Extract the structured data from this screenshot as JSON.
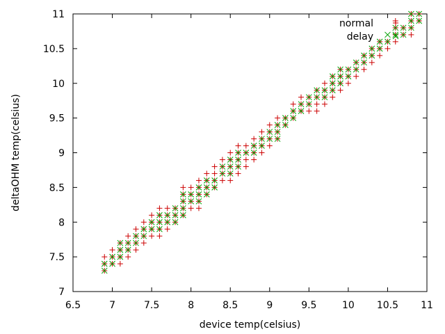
{
  "chart_data": {
    "type": "scatter",
    "title": "",
    "xlabel": "device temp(celsius)",
    "ylabel": "deltaOHM temp(celsius)",
    "xlim": [
      6.5,
      11
    ],
    "ylim": [
      7,
      11
    ],
    "xticks": [
      6.5,
      7,
      7.5,
      8,
      8.5,
      9,
      9.5,
      10,
      10.5,
      11
    ],
    "yticks": [
      7,
      7.5,
      8,
      8.5,
      9,
      9.5,
      10,
      10.5,
      11
    ],
    "xtick_labels": [
      "6.5",
      "7",
      "7.5",
      "8",
      "8.5",
      "9",
      "9.5",
      "10",
      "10.5",
      "11"
    ],
    "ytick_labels": [
      "7",
      "7.5",
      "8",
      "8.5",
      "9",
      "9.5",
      "10",
      "10.5",
      "11"
    ],
    "grid": false,
    "legend_position": "top-right",
    "series": [
      {
        "name": "normal",
        "marker": "plus",
        "color": "#cc0000",
        "points": [
          [
            6.9,
            7.3
          ],
          [
            6.9,
            7.4
          ],
          [
            6.9,
            7.5
          ],
          [
            7.0,
            7.4
          ],
          [
            7.0,
            7.5
          ],
          [
            7.0,
            7.6
          ],
          [
            7.1,
            7.4
          ],
          [
            7.1,
            7.5
          ],
          [
            7.1,
            7.6
          ],
          [
            7.1,
            7.7
          ],
          [
            7.2,
            7.5
          ],
          [
            7.2,
            7.6
          ],
          [
            7.2,
            7.7
          ],
          [
            7.2,
            7.8
          ],
          [
            7.3,
            7.6
          ],
          [
            7.3,
            7.7
          ],
          [
            7.3,
            7.8
          ],
          [
            7.3,
            7.9
          ],
          [
            7.4,
            7.7
          ],
          [
            7.4,
            7.8
          ],
          [
            7.4,
            7.9
          ],
          [
            7.4,
            8.0
          ],
          [
            7.5,
            7.8
          ],
          [
            7.5,
            7.9
          ],
          [
            7.5,
            8.0
          ],
          [
            7.5,
            8.1
          ],
          [
            7.6,
            7.8
          ],
          [
            7.6,
            7.9
          ],
          [
            7.6,
            8.0
          ],
          [
            7.6,
            8.1
          ],
          [
            7.6,
            8.2
          ],
          [
            7.7,
            7.9
          ],
          [
            7.7,
            8.0
          ],
          [
            7.7,
            8.1
          ],
          [
            7.7,
            8.2
          ],
          [
            7.8,
            8.0
          ],
          [
            7.8,
            8.1
          ],
          [
            7.8,
            8.2
          ],
          [
            7.9,
            8.1
          ],
          [
            7.9,
            8.2
          ],
          [
            7.9,
            8.3
          ],
          [
            7.9,
            8.4
          ],
          [
            7.9,
            8.5
          ],
          [
            8.0,
            8.2
          ],
          [
            8.0,
            8.3
          ],
          [
            8.0,
            8.4
          ],
          [
            8.0,
            8.5
          ],
          [
            8.1,
            8.2
          ],
          [
            8.1,
            8.3
          ],
          [
            8.1,
            8.4
          ],
          [
            8.1,
            8.5
          ],
          [
            8.1,
            8.6
          ],
          [
            8.2,
            8.4
          ],
          [
            8.2,
            8.5
          ],
          [
            8.2,
            8.6
          ],
          [
            8.2,
            8.7
          ],
          [
            8.3,
            8.5
          ],
          [
            8.3,
            8.6
          ],
          [
            8.3,
            8.7
          ],
          [
            8.3,
            8.8
          ],
          [
            8.4,
            8.6
          ],
          [
            8.4,
            8.7
          ],
          [
            8.4,
            8.8
          ],
          [
            8.4,
            8.9
          ],
          [
            8.5,
            8.6
          ],
          [
            8.5,
            8.7
          ],
          [
            8.5,
            8.8
          ],
          [
            8.5,
            8.9
          ],
          [
            8.5,
            9.0
          ],
          [
            8.6,
            8.7
          ],
          [
            8.6,
            8.8
          ],
          [
            8.6,
            8.9
          ],
          [
            8.6,
            9.0
          ],
          [
            8.6,
            9.1
          ],
          [
            8.7,
            8.8
          ],
          [
            8.7,
            8.9
          ],
          [
            8.7,
            9.0
          ],
          [
            8.7,
            9.1
          ],
          [
            8.8,
            8.9
          ],
          [
            8.8,
            9.0
          ],
          [
            8.8,
            9.1
          ],
          [
            8.8,
            9.2
          ],
          [
            8.9,
            9.0
          ],
          [
            8.9,
            9.1
          ],
          [
            8.9,
            9.2
          ],
          [
            8.9,
            9.3
          ],
          [
            9.0,
            9.1
          ],
          [
            9.0,
            9.2
          ],
          [
            9.0,
            9.3
          ],
          [
            9.0,
            9.4
          ],
          [
            9.1,
            9.2
          ],
          [
            9.1,
            9.3
          ],
          [
            9.1,
            9.4
          ],
          [
            9.1,
            9.5
          ],
          [
            9.2,
            9.4
          ],
          [
            9.2,
            9.5
          ],
          [
            9.3,
            9.5
          ],
          [
            9.3,
            9.6
          ],
          [
            9.3,
            9.7
          ],
          [
            9.4,
            9.6
          ],
          [
            9.4,
            9.7
          ],
          [
            9.4,
            9.8
          ],
          [
            9.5,
            9.6
          ],
          [
            9.5,
            9.7
          ],
          [
            9.5,
            9.8
          ],
          [
            9.6,
            9.6
          ],
          [
            9.6,
            9.7
          ],
          [
            9.6,
            9.8
          ],
          [
            9.6,
            9.9
          ],
          [
            9.7,
            9.7
          ],
          [
            9.7,
            9.8
          ],
          [
            9.7,
            9.9
          ],
          [
            9.7,
            10.0
          ],
          [
            9.8,
            9.8
          ],
          [
            9.8,
            9.9
          ],
          [
            9.8,
            10.0
          ],
          [
            9.8,
            10.1
          ],
          [
            9.9,
            9.9
          ],
          [
            9.9,
            10.0
          ],
          [
            9.9,
            10.1
          ],
          [
            9.9,
            10.2
          ],
          [
            10.0,
            10.0
          ],
          [
            10.0,
            10.1
          ],
          [
            10.0,
            10.2
          ],
          [
            10.1,
            10.1
          ],
          [
            10.1,
            10.2
          ],
          [
            10.1,
            10.3
          ],
          [
            10.2,
            10.2
          ],
          [
            10.2,
            10.3
          ],
          [
            10.2,
            10.4
          ],
          [
            10.3,
            10.3
          ],
          [
            10.3,
            10.4
          ],
          [
            10.3,
            10.5
          ],
          [
            10.4,
            10.4
          ],
          [
            10.4,
            10.5
          ],
          [
            10.4,
            10.6
          ],
          [
            10.5,
            10.5
          ],
          [
            10.5,
            10.6
          ],
          [
            10.6,
            10.6
          ],
          [
            10.6,
            10.7
          ],
          [
            10.6,
            10.8
          ],
          [
            10.6,
            10.9
          ],
          [
            10.7,
            10.7
          ],
          [
            10.7,
            10.8
          ],
          [
            10.8,
            10.7
          ],
          [
            10.8,
            10.8
          ],
          [
            10.8,
            10.9
          ],
          [
            10.8,
            11.0
          ],
          [
            10.9,
            10.9
          ],
          [
            10.9,
            11.0
          ]
        ]
      },
      {
        "name": "delay",
        "marker": "cross",
        "color": "#00a000",
        "points": [
          [
            6.9,
            7.3
          ],
          [
            6.9,
            7.4
          ],
          [
            7.0,
            7.4
          ],
          [
            7.0,
            7.5
          ],
          [
            7.1,
            7.5
          ],
          [
            7.1,
            7.6
          ],
          [
            7.1,
            7.7
          ],
          [
            7.2,
            7.6
          ],
          [
            7.2,
            7.7
          ],
          [
            7.3,
            7.7
          ],
          [
            7.3,
            7.8
          ],
          [
            7.4,
            7.8
          ],
          [
            7.4,
            7.9
          ],
          [
            7.5,
            7.9
          ],
          [
            7.5,
            8.0
          ],
          [
            7.6,
            7.9
          ],
          [
            7.6,
            8.0
          ],
          [
            7.6,
            8.1
          ],
          [
            7.7,
            8.0
          ],
          [
            7.7,
            8.1
          ],
          [
            7.8,
            8.0
          ],
          [
            7.8,
            8.1
          ],
          [
            7.8,
            8.2
          ],
          [
            7.9,
            8.1
          ],
          [
            7.9,
            8.2
          ],
          [
            7.9,
            8.3
          ],
          [
            7.9,
            8.4
          ],
          [
            8.0,
            8.3
          ],
          [
            8.0,
            8.4
          ],
          [
            8.1,
            8.3
          ],
          [
            8.1,
            8.4
          ],
          [
            8.1,
            8.5
          ],
          [
            8.2,
            8.4
          ],
          [
            8.2,
            8.5
          ],
          [
            8.2,
            8.6
          ],
          [
            8.3,
            8.5
          ],
          [
            8.3,
            8.6
          ],
          [
            8.4,
            8.7
          ],
          [
            8.4,
            8.8
          ],
          [
            8.5,
            8.7
          ],
          [
            8.5,
            8.8
          ],
          [
            8.5,
            8.9
          ],
          [
            8.6,
            8.8
          ],
          [
            8.6,
            8.9
          ],
          [
            8.6,
            9.0
          ],
          [
            8.7,
            9.0
          ],
          [
            8.8,
            9.0
          ],
          [
            8.8,
            9.1
          ],
          [
            8.9,
            9.1
          ],
          [
            8.9,
            9.2
          ],
          [
            9.0,
            9.2
          ],
          [
            9.0,
            9.3
          ],
          [
            9.1,
            9.2
          ],
          [
            9.1,
            9.3
          ],
          [
            9.1,
            9.4
          ],
          [
            9.2,
            9.4
          ],
          [
            9.2,
            9.5
          ],
          [
            9.3,
            9.5
          ],
          [
            9.3,
            9.6
          ],
          [
            9.4,
            9.6
          ],
          [
            9.4,
            9.7
          ],
          [
            9.5,
            9.7
          ],
          [
            9.5,
            9.8
          ],
          [
            9.6,
            9.8
          ],
          [
            9.6,
            9.9
          ],
          [
            9.7,
            9.8
          ],
          [
            9.7,
            9.9
          ],
          [
            9.8,
            9.9
          ],
          [
            9.8,
            10.0
          ],
          [
            9.8,
            10.1
          ],
          [
            9.9,
            10.0
          ],
          [
            9.9,
            10.1
          ],
          [
            9.9,
            10.2
          ],
          [
            10.0,
            10.1
          ],
          [
            10.0,
            10.2
          ],
          [
            10.1,
            10.2
          ],
          [
            10.1,
            10.3
          ],
          [
            10.2,
            10.3
          ],
          [
            10.2,
            10.4
          ],
          [
            10.3,
            10.4
          ],
          [
            10.3,
            10.5
          ],
          [
            10.4,
            10.5
          ],
          [
            10.4,
            10.6
          ],
          [
            10.5,
            10.6
          ],
          [
            10.5,
            10.7
          ],
          [
            10.6,
            10.7
          ],
          [
            10.6,
            10.8
          ],
          [
            10.7,
            10.7
          ],
          [
            10.7,
            10.8
          ],
          [
            10.8,
            10.8
          ],
          [
            10.8,
            10.9
          ],
          [
            10.8,
            11.0
          ],
          [
            10.9,
            10.9
          ],
          [
            10.9,
            11.0
          ]
        ]
      }
    ]
  }
}
